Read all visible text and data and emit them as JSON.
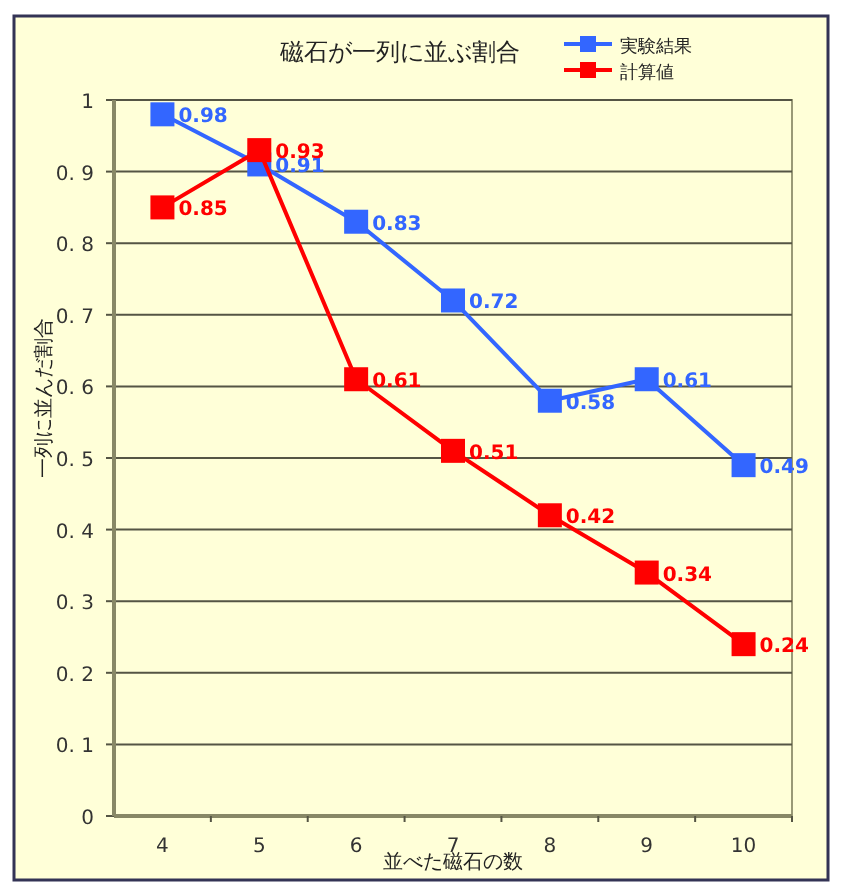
{
  "chart_data": {
    "type": "line",
    "title": "磁石が一列に並ぶ割合",
    "xlabel": "並べた磁石の数",
    "ylabel": "一列に並んだ割合",
    "categories": [
      "4",
      "5",
      "6",
      "7",
      "8",
      "9",
      "10"
    ],
    "series": [
      {
        "name": "実験結果",
        "color": "#3366ff",
        "values": [
          0.98,
          0.91,
          0.83,
          0.72,
          0.58,
          0.61,
          0.49
        ]
      },
      {
        "name": "計算値",
        "color": "#ff0000",
        "values": [
          0.85,
          0.93,
          0.61,
          0.51,
          0.42,
          0.34,
          0.24
        ]
      }
    ],
    "ylim": [
      0,
      1
    ],
    "yticks": [
      0,
      {
        "value": 0.1,
        "label": "0. 1"
      },
      {
        "value": 0.2,
        "label": "0. 2"
      },
      {
        "value": 0.3,
        "label": "0. 3"
      },
      {
        "value": 0.4,
        "label": "0. 4"
      },
      {
        "value": 0.5,
        "label": "0. 5"
      },
      {
        "value": 0.6,
        "label": "0. 6"
      },
      {
        "value": 0.7,
        "label": "0. 7"
      },
      {
        "value": 0.8,
        "label": "0. 8"
      },
      {
        "value": 0.9,
        "label": "0. 9"
      },
      1
    ],
    "grid": "y",
    "legend": "top right",
    "marker": "square",
    "line_style": "solid",
    "data_labels": true
  }
}
